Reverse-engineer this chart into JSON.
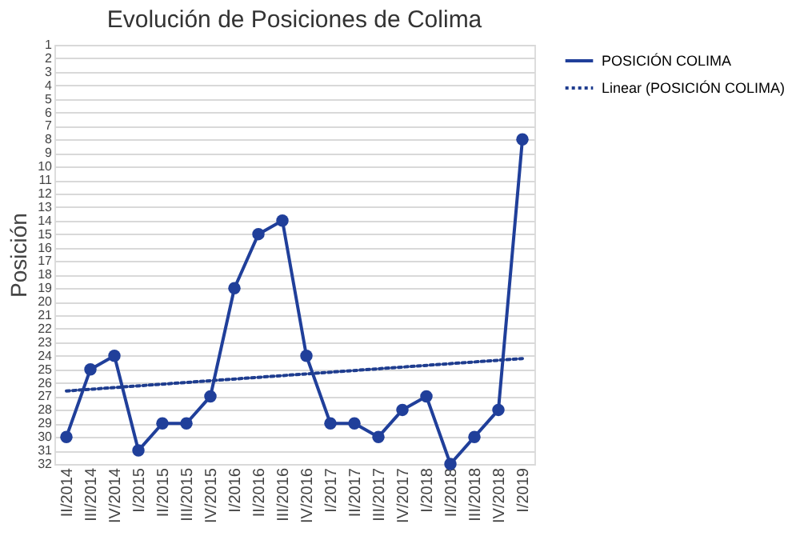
{
  "chart_data": {
    "type": "line",
    "title": "Evolución de Posiciones de Colima",
    "ylabel": "Posición",
    "categories": [
      "II/2014",
      "III/2014",
      "IV/2014",
      "I/2015",
      "II/2015",
      "III/2015",
      "IV/2015",
      "I/2016",
      "II/2016",
      "III/2016",
      "IV/2016",
      "I/2017",
      "II/2017",
      "III/2017",
      "IV/2017",
      "I/2018",
      "II/2018",
      "III/2018",
      "IV/2018",
      "I/2019"
    ],
    "series": [
      {
        "name": "POSICIÓN COLIMA",
        "color": "#203f9a",
        "marker": "circle",
        "line_style": "solid",
        "values": [
          30,
          25,
          24,
          31,
          29,
          29,
          27,
          19,
          15,
          14,
          24,
          29,
          29,
          30,
          28,
          27,
          32,
          30,
          28,
          8
        ]
      },
      {
        "name": "Linear (POSICIÓN COLIMA)",
        "type": "line",
        "color": "#1f3d8f",
        "marker": "none",
        "line_style": "dotted",
        "x": [
          "II/2014",
          "I/2019"
        ],
        "values": [
          26.6,
          24.2
        ]
      }
    ],
    "ylim": [
      32,
      1
    ],
    "yticks": [
      1,
      2,
      3,
      4,
      5,
      6,
      7,
      8,
      9,
      10,
      11,
      12,
      13,
      14,
      15,
      16,
      17,
      18,
      19,
      20,
      21,
      22,
      23,
      24,
      25,
      26,
      27,
      28,
      29,
      30,
      31,
      32
    ],
    "grid": "y",
    "legend": "right"
  }
}
